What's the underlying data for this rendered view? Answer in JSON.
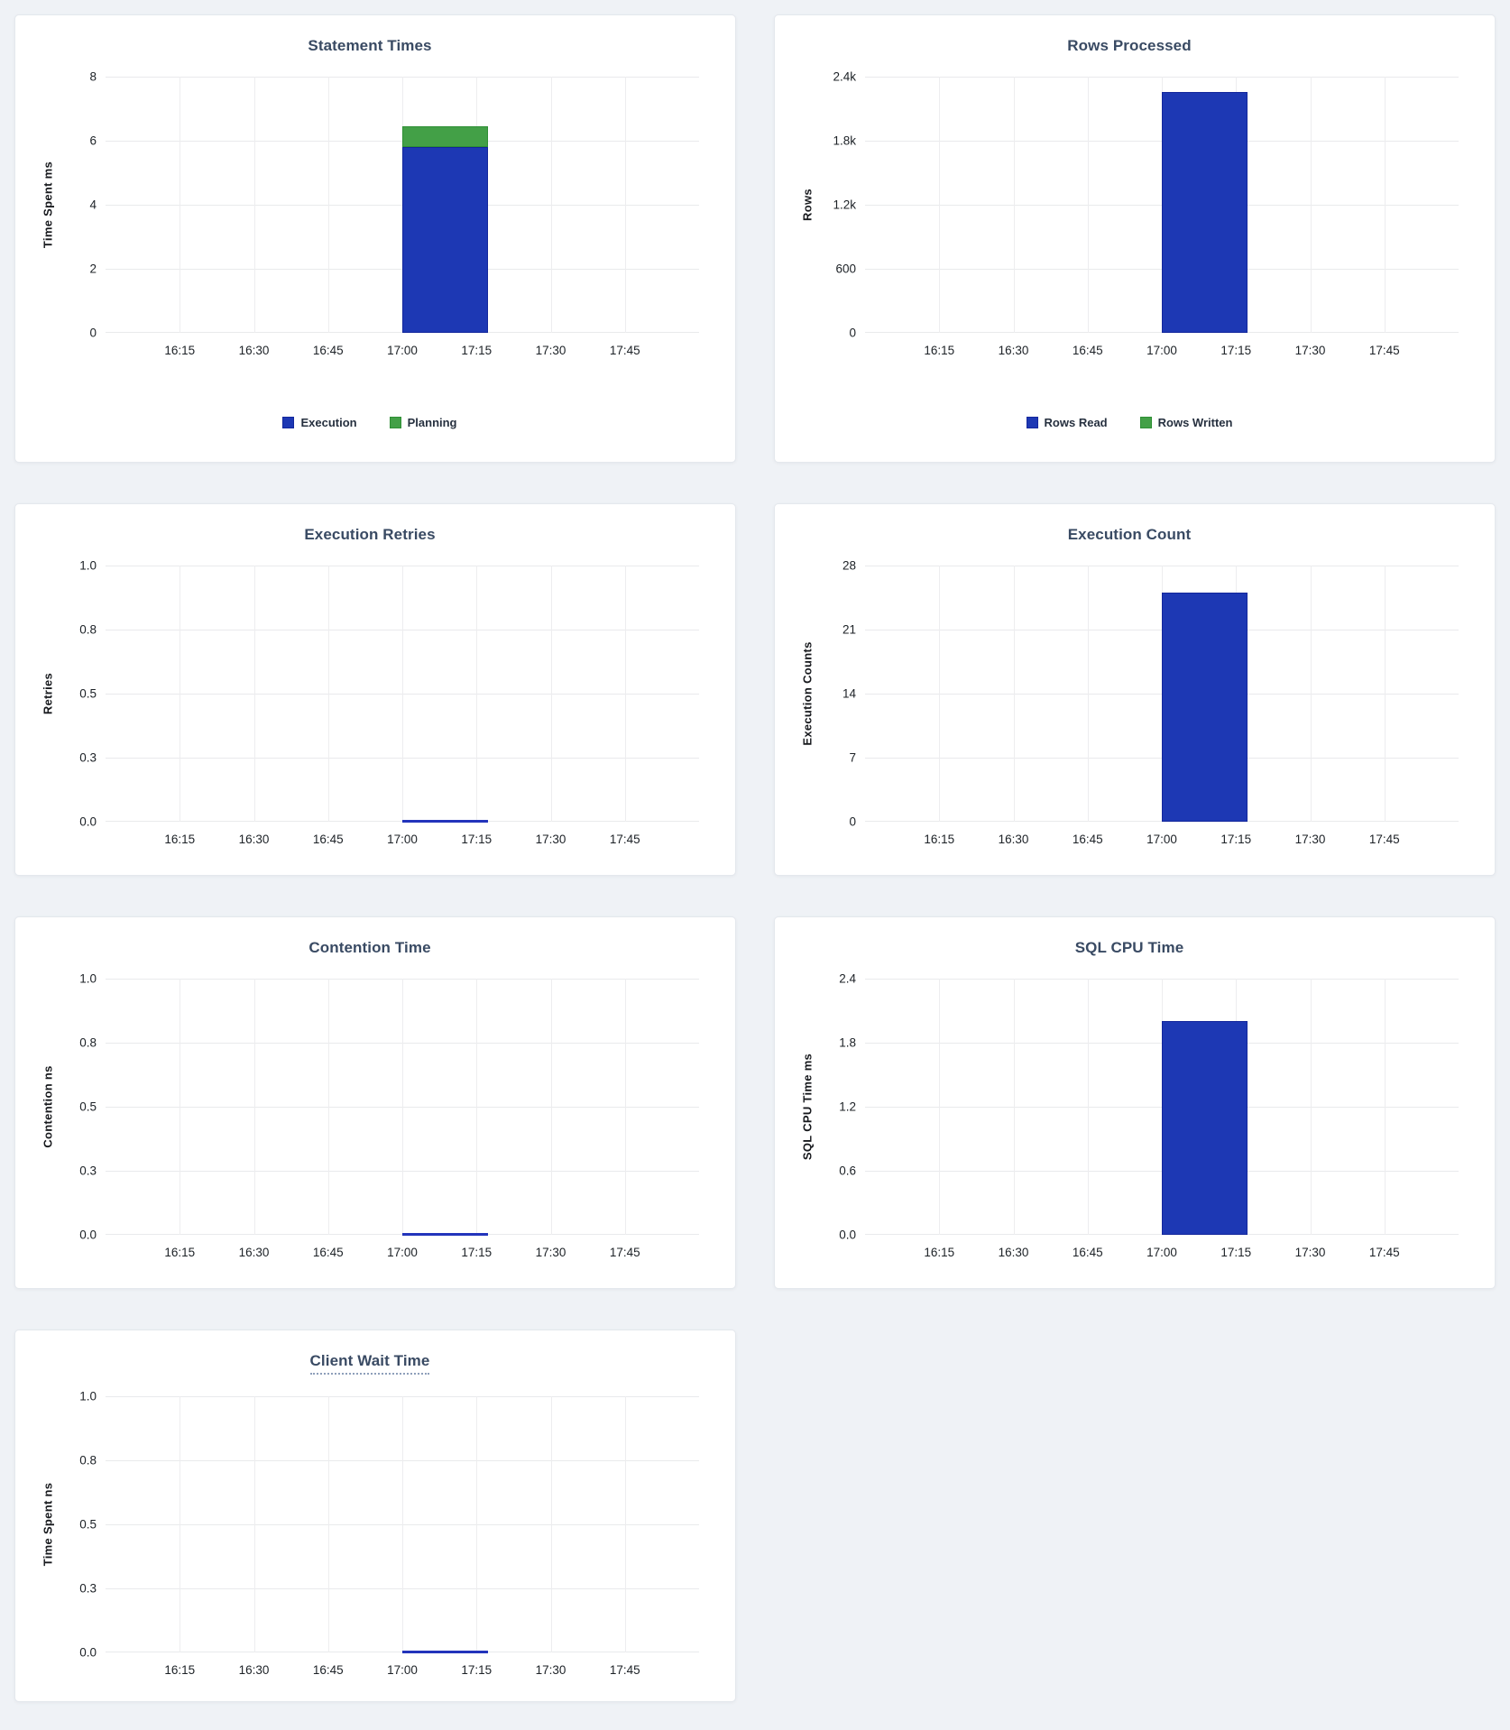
{
  "page": {
    "background_color": "#eff2f6",
    "card_background": "#ffffff",
    "title_color": "#394a63",
    "grid_color": "#e9eaec",
    "tick_color": "#1c2126"
  },
  "colors": {
    "bar_blue": "#1d38b4",
    "bar_blue_border": "#13279c",
    "bar_green": "#43a047",
    "bar_green_border": "#2f8f35",
    "zero_line_blue": "#2334bb",
    "tooltip_underline": "#8e9fba"
  },
  "x_axis": {
    "ticks": [
      "16:15",
      "16:30",
      "16:45",
      "17:00",
      "17:15",
      "17:30",
      "17:45"
    ],
    "domain_start": "16:00",
    "domain_end": "18:00",
    "bar_bucket_start": "17:00",
    "bar_bucket_end": "17:15"
  },
  "chart_data": [
    {
      "id": "statement-times",
      "type": "bar",
      "title": "Statement Times",
      "ylabel": "Time Spent ms",
      "yticks": [
        "8",
        "6",
        "4",
        "2",
        "0"
      ],
      "ymax": 8,
      "x_ticks": [
        "16:15",
        "16:30",
        "16:45",
        "17:00",
        "17:15",
        "17:30",
        "17:45"
      ],
      "legend": [
        "Execution",
        "Planning"
      ],
      "series": [
        {
          "name": "Execution",
          "color": "blue",
          "points": [
            {
              "x": "17:00",
              "y": 5.8
            }
          ]
        },
        {
          "name": "Planning",
          "color": "green",
          "points": [
            {
              "x": "17:00",
              "y": 0.65
            }
          ]
        }
      ],
      "stacked": true
    },
    {
      "id": "rows-processed",
      "type": "bar",
      "title": "Rows Processed",
      "ylabel": "Rows",
      "yticks": [
        "2.4k",
        "1.8k",
        "1.2k",
        "600",
        "0"
      ],
      "ymax": 2400,
      "x_ticks": [
        "16:15",
        "16:30",
        "16:45",
        "17:00",
        "17:15",
        "17:30",
        "17:45"
      ],
      "legend": [
        "Rows Read",
        "Rows Written"
      ],
      "series": [
        {
          "name": "Rows Read",
          "color": "blue",
          "points": [
            {
              "x": "17:00",
              "y": 2260
            }
          ]
        },
        {
          "name": "Rows Written",
          "color": "green",
          "points": [
            {
              "x": "17:00",
              "y": 0
            }
          ]
        }
      ],
      "stacked": true
    },
    {
      "id": "execution-retries",
      "type": "bar",
      "title": "Execution Retries",
      "ylabel": "Retries",
      "yticks": [
        "1.0",
        "0.8",
        "0.5",
        "0.3",
        "0.0"
      ],
      "ymax": 1,
      "x_ticks": [
        "16:15",
        "16:30",
        "16:45",
        "17:00",
        "17:15",
        "17:30",
        "17:45"
      ],
      "series": [
        {
          "name": "Retries",
          "color": "blue",
          "points": [
            {
              "x": "17:00",
              "y": 0
            }
          ]
        }
      ],
      "stacked": false
    },
    {
      "id": "execution-count",
      "type": "bar",
      "title": "Execution Count",
      "ylabel": "Execution Counts",
      "yticks": [
        "28",
        "21",
        "14",
        "7",
        "0"
      ],
      "ymax": 28,
      "x_ticks": [
        "16:15",
        "16:30",
        "16:45",
        "17:00",
        "17:15",
        "17:30",
        "17:45"
      ],
      "series": [
        {
          "name": "Execution Count",
          "color": "blue",
          "points": [
            {
              "x": "17:00",
              "y": 25
            }
          ]
        }
      ],
      "stacked": false
    },
    {
      "id": "contention-time",
      "type": "bar",
      "title": "Contention Time",
      "ylabel": "Contention ns",
      "yticks": [
        "1.0",
        "0.8",
        "0.5",
        "0.3",
        "0.0"
      ],
      "ymax": 1,
      "x_ticks": [
        "16:15",
        "16:30",
        "16:45",
        "17:00",
        "17:15",
        "17:30",
        "17:45"
      ],
      "series": [
        {
          "name": "Contention",
          "color": "blue",
          "points": [
            {
              "x": "17:00",
              "y": 0
            }
          ]
        }
      ],
      "stacked": false
    },
    {
      "id": "sql-cpu-time",
      "type": "bar",
      "title": "SQL CPU Time",
      "ylabel": "SQL CPU Time ms",
      "yticks": [
        "2.4",
        "1.8",
        "1.2",
        "0.6",
        "0.0"
      ],
      "ymax": 2.4,
      "x_ticks": [
        "16:15",
        "16:30",
        "16:45",
        "17:00",
        "17:15",
        "17:30",
        "17:45"
      ],
      "series": [
        {
          "name": "SQL CPU Time",
          "color": "blue",
          "points": [
            {
              "x": "17:00",
              "y": 2.0
            }
          ]
        }
      ],
      "stacked": false
    },
    {
      "id": "client-wait-time",
      "type": "bar",
      "title": "Client Wait Time",
      "title_tooltip": true,
      "ylabel": "Time Spent ns",
      "yticks": [
        "1.0",
        "0.8",
        "0.5",
        "0.3",
        "0.0"
      ],
      "ymax": 1,
      "x_ticks": [
        "16:15",
        "16:30",
        "16:45",
        "17:00",
        "17:15",
        "17:30",
        "17:45"
      ],
      "series": [
        {
          "name": "Client Wait",
          "color": "blue",
          "points": [
            {
              "x": "17:00",
              "y": 0
            }
          ]
        }
      ],
      "stacked": false
    }
  ]
}
